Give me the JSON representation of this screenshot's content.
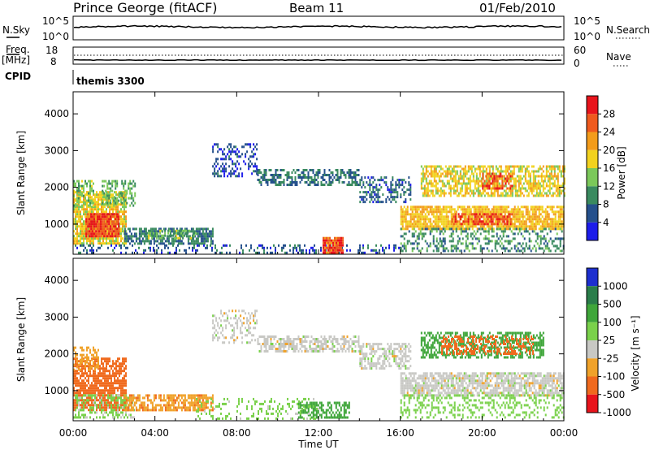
{
  "header": {
    "station": "Prince George (fitACF)",
    "beam": "Beam 11",
    "date": "01/Feb/2010"
  },
  "status_panels": {
    "nsky_label": "N.Sky",
    "nsearch_label": "N.Search",
    "noise_ticks": [
      "10^5",
      "10^0"
    ],
    "freq_label": "Freq.",
    "freq_unit": "[MHz]",
    "freq_ticks": [
      "18",
      "8"
    ],
    "nave_label": "Nave",
    "nave_ticks": [
      "60",
      "0"
    ],
    "cpid_label": "CPID",
    "cpid_value": "themis 3300"
  },
  "chart_data": [
    {
      "type": "heatmap",
      "name": "power",
      "ylabel": "Slant Range [km]",
      "xlabel": "",
      "x_tick_labels": [
        "00:00",
        "04:00",
        "08:00",
        "12:00",
        "16:00",
        "20:00",
        "00:00"
      ],
      "xlim_hours": [
        0,
        24
      ],
      "y_ticks": [
        1000,
        2000,
        3000,
        4000
      ],
      "ylim": [
        180,
        4600
      ],
      "colorbar": {
        "label": "Power [dB]",
        "ticks": [
          "4",
          "8",
          "12",
          "16",
          "20",
          "24",
          "28"
        ],
        "colors": [
          "#1d1dea",
          "#25508c",
          "#3a8a5f",
          "#7bc85a",
          "#f2d21f",
          "#f39c1b",
          "#ef5a1e",
          "#e8141c"
        ]
      },
      "regions": [
        {
          "t0": 0.0,
          "t1": 2.6,
          "r0": 500,
          "r1": 1900,
          "value": 18,
          "density": 0.8
        },
        {
          "t0": 0.6,
          "t1": 2.2,
          "r0": 700,
          "r1": 1300,
          "value": 27,
          "density": 0.95
        },
        {
          "t0": 0.0,
          "t1": 1.0,
          "r0": 1500,
          "r1": 2200,
          "value": 14,
          "density": 0.55
        },
        {
          "t0": 1.4,
          "t1": 3.0,
          "r0": 1500,
          "r1": 2200,
          "value": 12,
          "density": 0.45
        },
        {
          "t0": 2.5,
          "t1": 6.8,
          "r0": 500,
          "r1": 900,
          "value": 8,
          "density": 0.7
        },
        {
          "t0": 3.5,
          "t1": 6.0,
          "r0": 600,
          "r1": 850,
          "value": 13,
          "density": 0.5
        },
        {
          "t0": 0.0,
          "t1": 16.0,
          "r0": 200,
          "r1": 450,
          "value": 6,
          "density": 0.25
        },
        {
          "t0": 6.8,
          "t1": 9.0,
          "r0": 2300,
          "r1": 3200,
          "value": 5,
          "density": 0.35
        },
        {
          "t0": 9.0,
          "t1": 14.0,
          "r0": 2100,
          "r1": 2500,
          "value": 8,
          "density": 0.55
        },
        {
          "t0": 14.0,
          "t1": 16.5,
          "r0": 1600,
          "r1": 2300,
          "value": 7,
          "density": 0.45
        },
        {
          "t0": 12.2,
          "t1": 13.2,
          "r0": 250,
          "r1": 650,
          "value": 27,
          "density": 0.9
        },
        {
          "t0": 16.0,
          "t1": 24.0,
          "r0": 900,
          "r1": 1500,
          "value": 20,
          "density": 0.8
        },
        {
          "t0": 17.0,
          "t1": 24.0,
          "r0": 1800,
          "r1": 2600,
          "value": 18,
          "density": 0.65
        },
        {
          "t0": 18.5,
          "t1": 21.5,
          "r0": 1000,
          "r1": 1300,
          "value": 27,
          "density": 0.55
        },
        {
          "t0": 20.0,
          "t1": 21.5,
          "r0": 2000,
          "r1": 2400,
          "value": 27,
          "density": 0.55
        },
        {
          "t0": 16.0,
          "t1": 24.0,
          "r0": 300,
          "r1": 900,
          "value": 10,
          "density": 0.35
        }
      ]
    },
    {
      "type": "heatmap",
      "name": "velocity",
      "ylabel": "Slant Range [km]",
      "xlabel": "Time UT",
      "x_tick_labels": [
        "00:00",
        "04:00",
        "08:00",
        "12:00",
        "16:00",
        "20:00",
        "00:00"
      ],
      "xlim_hours": [
        0,
        24
      ],
      "y_ticks": [
        1000,
        2000,
        3000,
        4000
      ],
      "ylim": [
        180,
        4600
      ],
      "colorbar": {
        "label": "Velocity [m s⁻¹]",
        "ticks": [
          "1000",
          "500",
          "100",
          "25",
          "-25",
          "-100",
          "-500",
          "-1000"
        ],
        "colors": [
          "#1d2fcf",
          "#2a7d4a",
          "#3fa63a",
          "#7ad14b",
          "#c8c8c4",
          "#f0a22a",
          "#f06a1e",
          "#e8141c"
        ]
      },
      "regions": [
        {
          "t0": 0.0,
          "t1": 2.6,
          "r0": 500,
          "r1": 1900,
          "value": -150,
          "density": 0.75
        },
        {
          "t0": 0.0,
          "t1": 1.2,
          "r0": 1600,
          "r1": 2200,
          "value": -70,
          "density": 0.45
        },
        {
          "t0": 0.0,
          "t1": 3.0,
          "r0": 300,
          "r1": 900,
          "value": 40,
          "density": 0.45
        },
        {
          "t0": 2.5,
          "t1": 6.8,
          "r0": 500,
          "r1": 900,
          "value": -80,
          "density": 0.7
        },
        {
          "t0": 6.8,
          "t1": 9.0,
          "r0": 2300,
          "r1": 3200,
          "value": 0,
          "density": 0.35
        },
        {
          "t0": 9.0,
          "t1": 14.0,
          "r0": 2100,
          "r1": 2500,
          "value": 0,
          "density": 0.6
        },
        {
          "t0": 14.0,
          "t1": 16.5,
          "r0": 1600,
          "r1": 2300,
          "value": 0,
          "density": 0.5
        },
        {
          "t0": 11.0,
          "t1": 13.5,
          "r0": 250,
          "r1": 700,
          "value": 200,
          "density": 0.6
        },
        {
          "t0": 6.0,
          "t1": 12.0,
          "r0": 250,
          "r1": 800,
          "value": 50,
          "density": 0.2
        },
        {
          "t0": 16.0,
          "t1": 24.0,
          "r0": 900,
          "r1": 1500,
          "value": 0,
          "density": 0.75
        },
        {
          "t0": 17.0,
          "t1": 23.0,
          "r0": 1900,
          "r1": 2600,
          "value": 150,
          "density": 0.55
        },
        {
          "t0": 18.0,
          "t1": 22.5,
          "r0": 2000,
          "r1": 2500,
          "value": -200,
          "density": 0.4
        },
        {
          "t0": 16.0,
          "t1": 24.0,
          "r0": 300,
          "r1": 900,
          "value": 60,
          "density": 0.3
        }
      ]
    }
  ]
}
